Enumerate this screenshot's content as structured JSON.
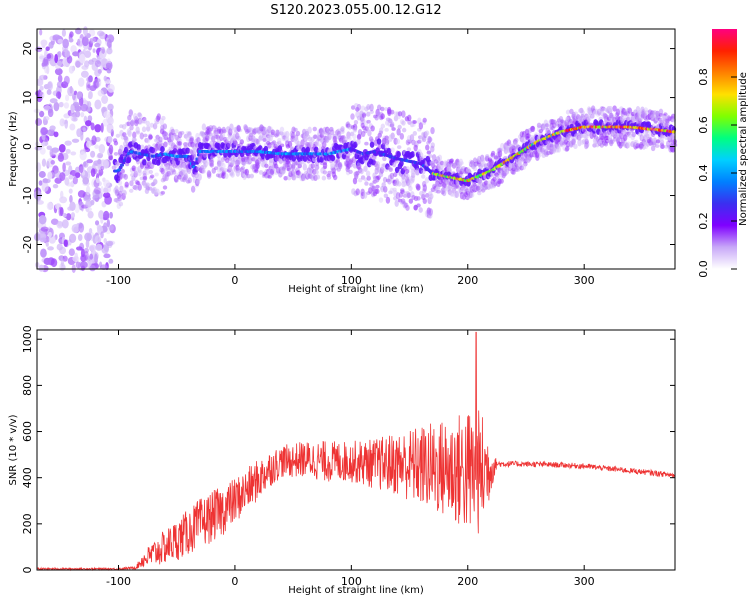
{
  "title": "S120.2023.055.00.12.G12",
  "chart_data": [
    {
      "type": "heatmap",
      "xlabel": "Height of straight line (km)",
      "ylabel": "Frequency (Hz)",
      "xlim": [
        -170,
        378
      ],
      "ylim": [
        -25,
        24
      ],
      "xticks": [
        -100,
        0,
        100,
        200,
        300
      ],
      "yticks": [
        -20,
        -10,
        0,
        10,
        20
      ],
      "ridge": {
        "x": [
          -100,
          -90,
          -80,
          -70,
          -60,
          -50,
          -40,
          -35,
          -30,
          -20,
          0,
          20,
          40,
          60,
          80,
          100,
          110,
          120,
          140,
          160,
          170,
          180,
          190,
          200,
          210,
          220,
          230,
          240,
          250,
          260,
          270,
          280,
          290,
          300,
          320,
          340,
          360,
          378
        ],
        "y": [
          -5,
          -1,
          -1.5,
          -2,
          -1.5,
          -2,
          -2,
          -4.5,
          -1,
          -1,
          -1,
          -1,
          -1.5,
          -1.5,
          -1.5,
          -0.5,
          -1.5,
          -1,
          -2.5,
          -3.5,
          -5.5,
          -6,
          -6.5,
          -7,
          -6,
          -5,
          -3.5,
          -2,
          -0.5,
          1,
          2,
          3,
          3.5,
          4,
          4,
          4,
          3.5,
          3
        ]
      },
      "noise_region_x": [
        -170,
        -105
      ],
      "colorbar": {
        "label": "Normalized spectral amplitude",
        "range": [
          0,
          1
        ],
        "ticks": [
          0.0,
          0.2,
          0.4,
          0.6,
          0.8
        ],
        "tick_labels": [
          "0.0",
          "0.2",
          "0.4",
          "0.6",
          "0.8"
        ],
        "colormap": [
          "#ffffff",
          "#c8a8f8",
          "#7f00ff",
          "#3b2ff0",
          "#0080ff",
          "#00d0ff",
          "#00ff80",
          "#80ff00",
          "#ffe000",
          "#ff8000",
          "#ff2000",
          "#ff0080"
        ]
      }
    },
    {
      "type": "line",
      "xlabel": "Height of straight line (km)",
      "ylabel": "SNR (10 * v/v)",
      "xlim": [
        -170,
        378
      ],
      "ylim": [
        0,
        1040
      ],
      "xticks": [
        -100,
        0,
        100,
        200,
        300
      ],
      "yticks": [
        0,
        200,
        400,
        600,
        800,
        1000
      ],
      "line_color": "#ee3333",
      "envelope": {
        "x": [
          -170,
          -100,
          -85,
          -80,
          -70,
          -50,
          -30,
          -10,
          0,
          20,
          30,
          40,
          60,
          80,
          100,
          120,
          140,
          160,
          180,
          195,
          205,
          215,
          220,
          225,
          240,
          260,
          280,
          300,
          320,
          340,
          360,
          378
        ],
        "mean": [
          5,
          5,
          10,
          40,
          70,
          130,
          200,
          260,
          300,
          390,
          440,
          470,
          480,
          470,
          470,
          460,
          460,
          450,
          440,
          430,
          420,
          430,
          440,
          460,
          460,
          458,
          455,
          450,
          440,
          430,
          420,
          410
        ],
        "spread": [
          4,
          4,
          6,
          30,
          60,
          90,
          110,
          110,
          100,
          90,
          80,
          70,
          80,
          90,
          90,
          110,
          140,
          180,
          220,
          260,
          300,
          240,
          100,
          15,
          12,
          12,
          12,
          12,
          12,
          12,
          12,
          12
        ]
      },
      "spike": {
        "x": 207,
        "value": 1030
      }
    }
  ]
}
